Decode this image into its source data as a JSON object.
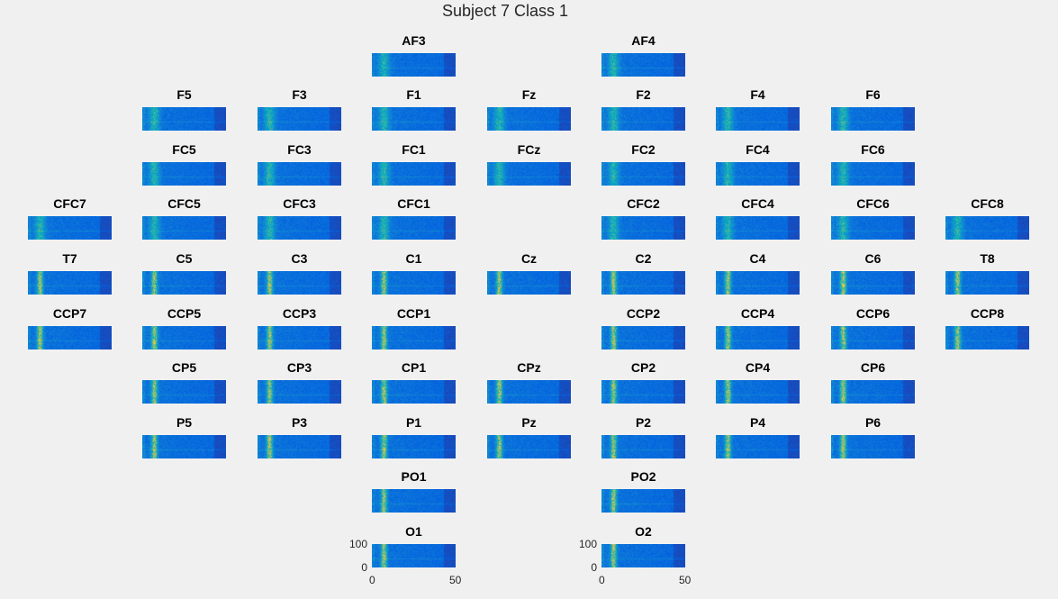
{
  "figure": {
    "title": "Subject 7 Class 1",
    "colormap": [
      "#352a87",
      "#0363e1",
      "#1485d4",
      "#06a7c6",
      "#38b99e",
      "#92bf73",
      "#d9ba56",
      "#fcce2e",
      "#f9fb0e"
    ],
    "background_color": "#f0f0f0"
  },
  "chart_data": {
    "type": "heatmap",
    "title": "Subject 7 Class 1",
    "description_of_panels": "spectrogram per EEG channel; x axis 0-50, y axis 0-100",
    "xlim": [
      0,
      50
    ],
    "ylim": [
      0,
      100
    ],
    "xticks": [
      "0",
      "50"
    ],
    "yticks": [
      "0",
      "100"
    ],
    "grid": false,
    "panels": [
      {
        "label": "AF3",
        "row": 0,
        "col": 3
      },
      {
        "label": "AF4",
        "row": 0,
        "col": 5
      },
      {
        "label": "F5",
        "row": 1,
        "col": 1
      },
      {
        "label": "F3",
        "row": 1,
        "col": 2
      },
      {
        "label": "F1",
        "row": 1,
        "col": 3
      },
      {
        "label": "Fz",
        "row": 1,
        "col": 4
      },
      {
        "label": "F2",
        "row": 1,
        "col": 5
      },
      {
        "label": "F4",
        "row": 1,
        "col": 6
      },
      {
        "label": "F6",
        "row": 1,
        "col": 7
      },
      {
        "label": "FC5",
        "row": 2,
        "col": 1
      },
      {
        "label": "FC3",
        "row": 2,
        "col": 2
      },
      {
        "label": "FC1",
        "row": 2,
        "col": 3
      },
      {
        "label": "FCz",
        "row": 2,
        "col": 4
      },
      {
        "label": "FC2",
        "row": 2,
        "col": 5
      },
      {
        "label": "FC4",
        "row": 2,
        "col": 6
      },
      {
        "label": "FC6",
        "row": 2,
        "col": 7
      },
      {
        "label": "CFC7",
        "row": 3,
        "col": 0
      },
      {
        "label": "CFC5",
        "row": 3,
        "col": 1
      },
      {
        "label": "CFC3",
        "row": 3,
        "col": 2
      },
      {
        "label": "CFC1",
        "row": 3,
        "col": 3
      },
      {
        "label": "CFC2",
        "row": 3,
        "col": 5
      },
      {
        "label": "CFC4",
        "row": 3,
        "col": 6
      },
      {
        "label": "CFC6",
        "row": 3,
        "col": 7
      },
      {
        "label": "CFC8",
        "row": 3,
        "col": 8
      },
      {
        "label": "T7",
        "row": 4,
        "col": 0
      },
      {
        "label": "C5",
        "row": 4,
        "col": 1
      },
      {
        "label": "C3",
        "row": 4,
        "col": 2
      },
      {
        "label": "C1",
        "row": 4,
        "col": 3
      },
      {
        "label": "Cz",
        "row": 4,
        "col": 4
      },
      {
        "label": "C2",
        "row": 4,
        "col": 5
      },
      {
        "label": "C4",
        "row": 4,
        "col": 6
      },
      {
        "label": "C6",
        "row": 4,
        "col": 7
      },
      {
        "label": "T8",
        "row": 4,
        "col": 8
      },
      {
        "label": "CCP7",
        "row": 5,
        "col": 0
      },
      {
        "label": "CCP5",
        "row": 5,
        "col": 1
      },
      {
        "label": "CCP3",
        "row": 5,
        "col": 2
      },
      {
        "label": "CCP1",
        "row": 5,
        "col": 3
      },
      {
        "label": "CCP2",
        "row": 5,
        "col": 5
      },
      {
        "label": "CCP4",
        "row": 5,
        "col": 6
      },
      {
        "label": "CCP6",
        "row": 5,
        "col": 7
      },
      {
        "label": "CCP8",
        "row": 5,
        "col": 8
      },
      {
        "label": "CP5",
        "row": 6,
        "col": 1
      },
      {
        "label": "CP3",
        "row": 6,
        "col": 2
      },
      {
        "label": "CP1",
        "row": 6,
        "col": 3
      },
      {
        "label": "CPz",
        "row": 6,
        "col": 4
      },
      {
        "label": "CP2",
        "row": 6,
        "col": 5
      },
      {
        "label": "CP4",
        "row": 6,
        "col": 6
      },
      {
        "label": "CP6",
        "row": 6,
        "col": 7
      },
      {
        "label": "P5",
        "row": 7,
        "col": 1
      },
      {
        "label": "P3",
        "row": 7,
        "col": 2
      },
      {
        "label": "P1",
        "row": 7,
        "col": 3
      },
      {
        "label": "Pz",
        "row": 7,
        "col": 4
      },
      {
        "label": "P2",
        "row": 7,
        "col": 5
      },
      {
        "label": "P4",
        "row": 7,
        "col": 6
      },
      {
        "label": "P6",
        "row": 7,
        "col": 7
      },
      {
        "label": "PO1",
        "row": 8,
        "col": 3
      },
      {
        "label": "PO2",
        "row": 8,
        "col": 5
      },
      {
        "label": "O1",
        "row": 9,
        "col": 3,
        "axes_visible": true
      },
      {
        "label": "O2",
        "row": 9,
        "col": 5,
        "axes_visible": true
      }
    ]
  }
}
